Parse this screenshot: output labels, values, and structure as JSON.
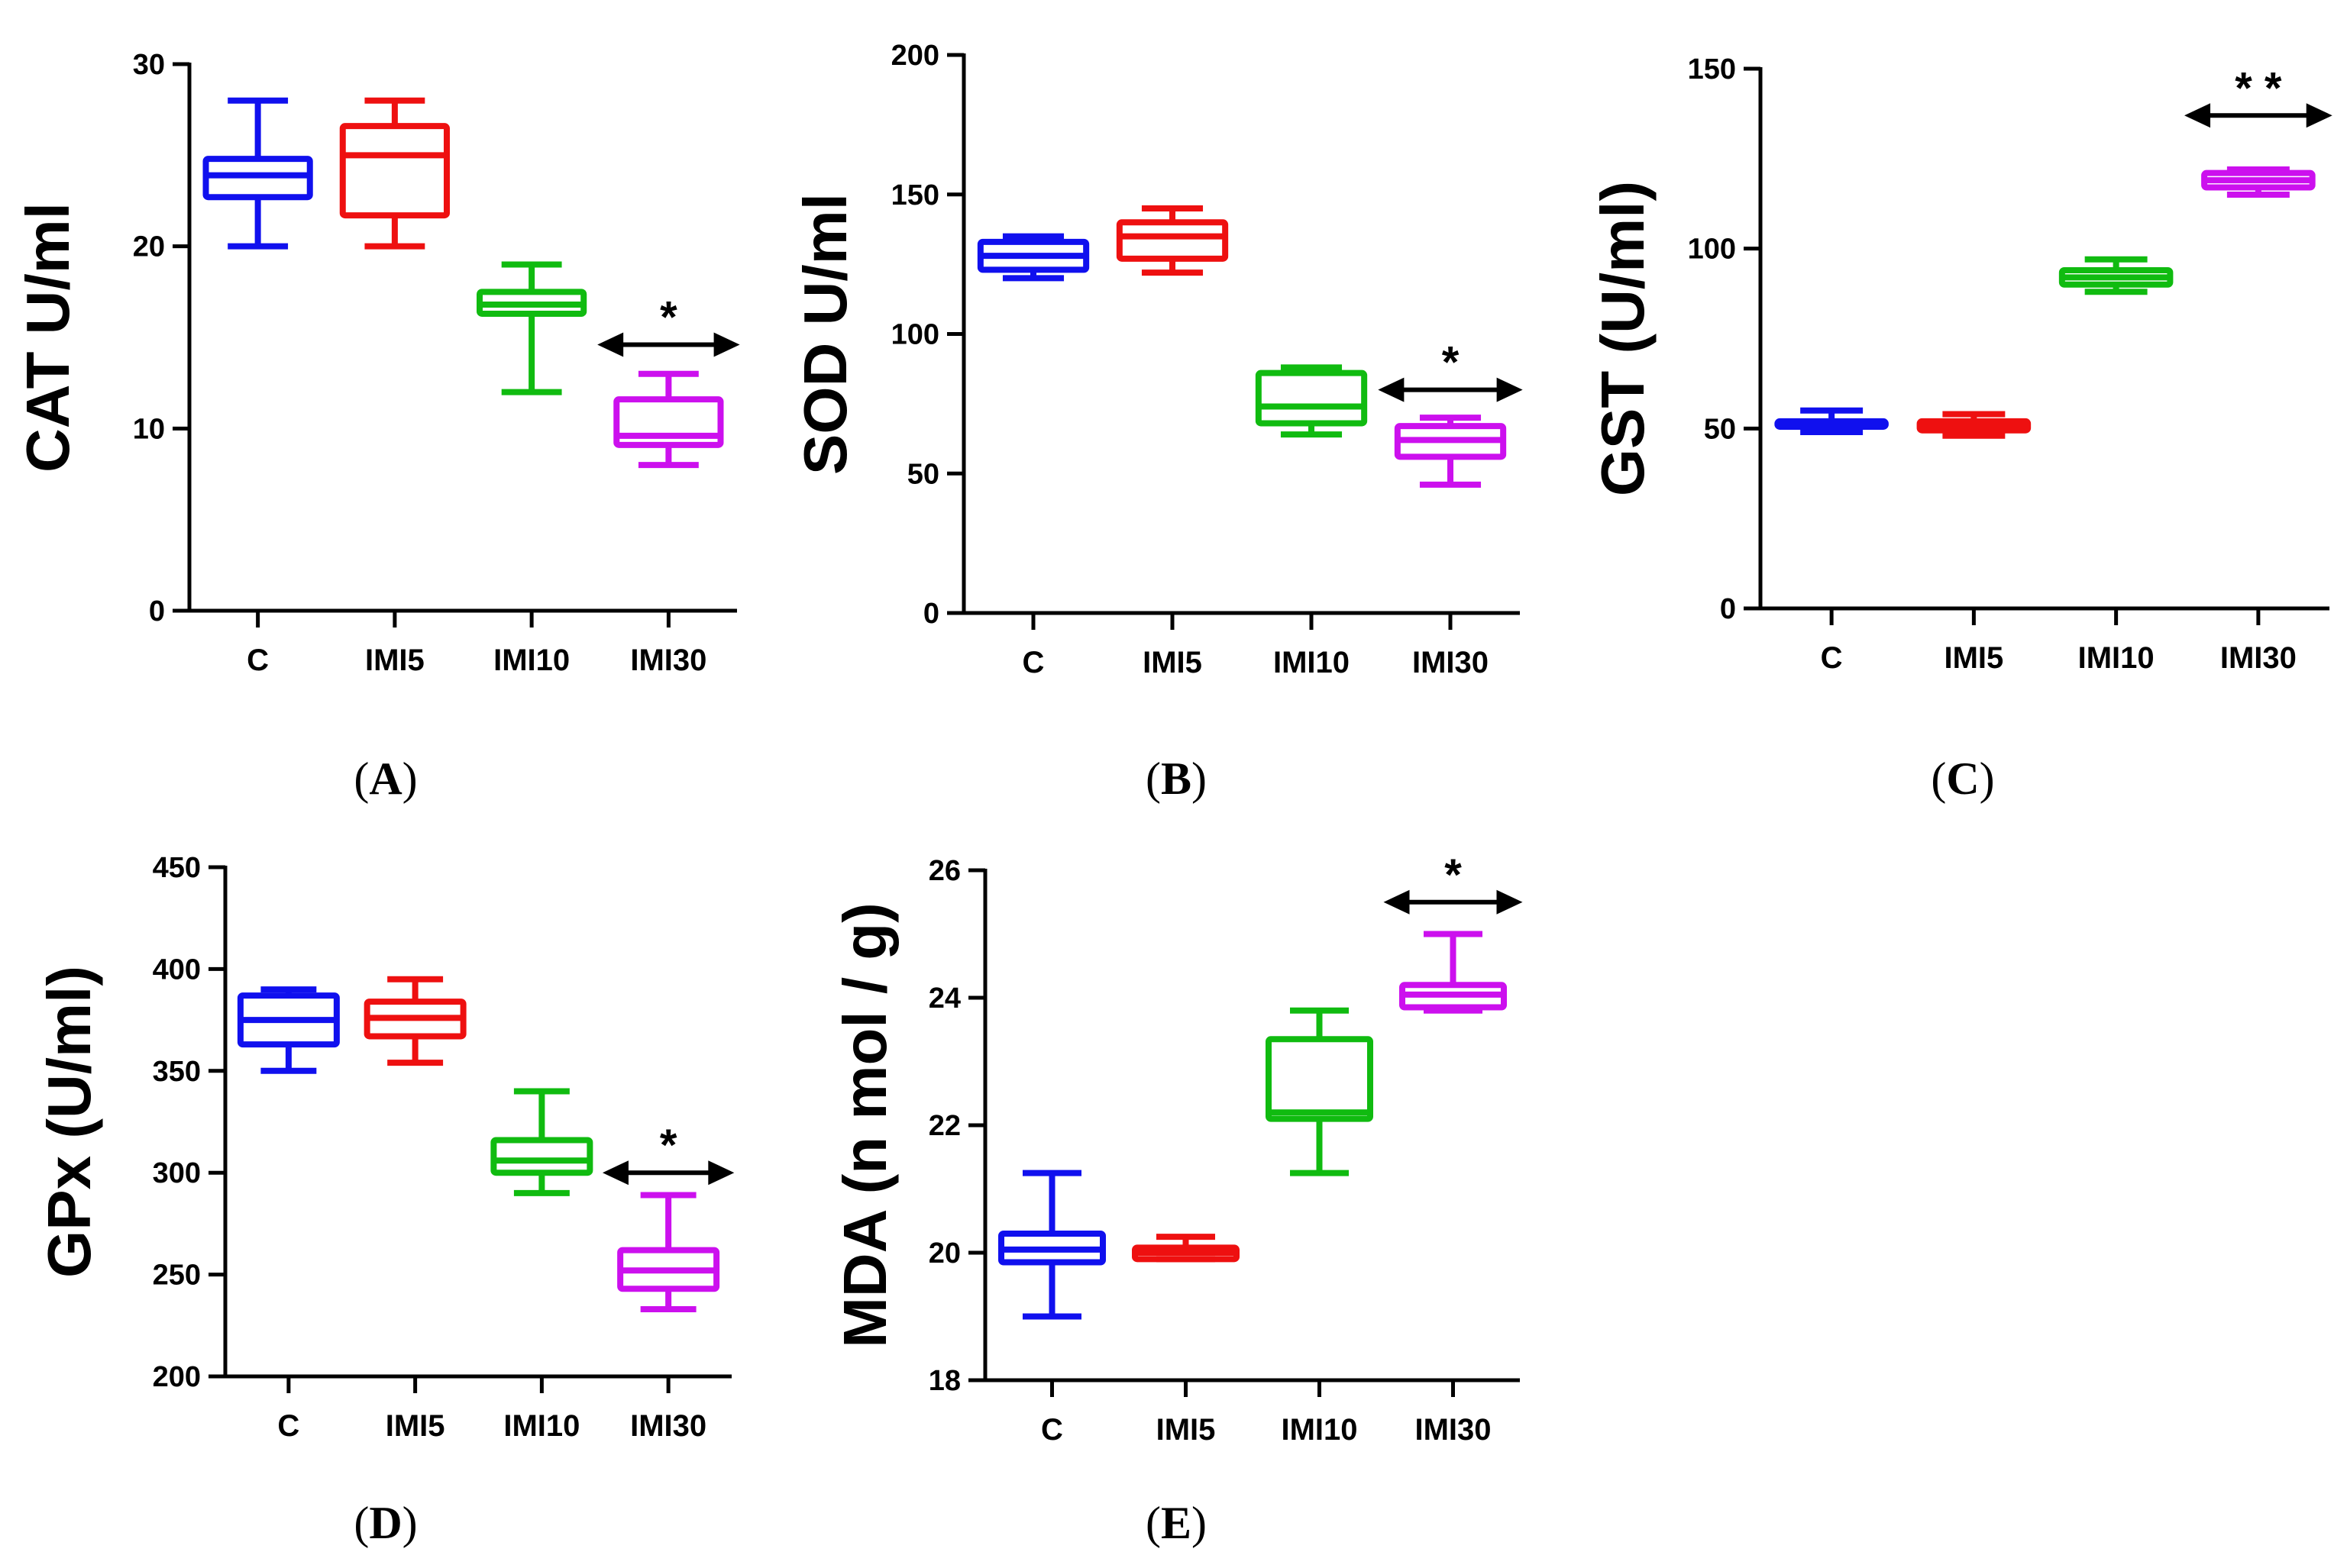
{
  "chart_data": [
    {
      "panel": "A",
      "type": "box",
      "ylabel": "CAT U/ml",
      "ylim": [
        0,
        30
      ],
      "yticks": [
        0,
        10,
        20,
        30
      ],
      "categories": [
        "C",
        "IMI5",
        "IMI10",
        "IMI30"
      ],
      "colors": [
        "#1010ee",
        "#ee1010",
        "#10bb10",
        "#cc10ee"
      ],
      "boxes": [
        {
          "min": 20,
          "q1": 22.7,
          "median": 23.9,
          "q3": 24.8,
          "max": 28
        },
        {
          "min": 20,
          "q1": 21.7,
          "median": 25,
          "q3": 26.6,
          "max": 28
        },
        {
          "min": 12,
          "q1": 16.3,
          "median": 16.8,
          "q3": 17.5,
          "max": 19
        },
        {
          "min": 8,
          "q1": 9.1,
          "median": 9.6,
          "q3": 11.6,
          "max": 13
        }
      ],
      "annotations": [
        {
          "text": "*",
          "category": "IMI30",
          "value": 14.6
        }
      ]
    },
    {
      "panel": "B",
      "type": "box",
      "ylabel": "SOD U/ml",
      "ylim": [
        0,
        200
      ],
      "yticks": [
        0,
        50,
        100,
        150,
        200
      ],
      "categories": [
        "C",
        "IMI5",
        "IMI10",
        "IMI30"
      ],
      "colors": [
        "#1010ee",
        "#ee1010",
        "#10bb10",
        "#cc10ee"
      ],
      "boxes": [
        {
          "min": 120,
          "q1": 123,
          "median": 128,
          "q3": 133,
          "max": 135
        },
        {
          "min": 122,
          "q1": 127,
          "median": 135,
          "q3": 140,
          "max": 145
        },
        {
          "min": 64,
          "q1": 68,
          "median": 74,
          "q3": 86,
          "max": 88
        },
        {
          "min": 46,
          "q1": 56,
          "median": 62,
          "q3": 67,
          "max": 70
        }
      ],
      "annotations": [
        {
          "text": "*",
          "category": "IMI30",
          "value": 80
        }
      ]
    },
    {
      "panel": "C",
      "type": "box",
      "ylabel": "GST (U/ml)",
      "ylim": [
        0,
        150
      ],
      "yticks": [
        0,
        50,
        100,
        150
      ],
      "categories": [
        "C",
        "IMI5",
        "IMI10",
        "IMI30"
      ],
      "colors": [
        "#1010ee",
        "#ee1010",
        "#10bb10",
        "#cc10ee"
      ],
      "boxes": [
        {
          "min": 49,
          "q1": 50.5,
          "median": 51,
          "q3": 52,
          "max": 55
        },
        {
          "min": 48,
          "q1": 49.5,
          "median": 50.5,
          "q3": 52,
          "max": 54
        },
        {
          "min": 88,
          "q1": 90,
          "median": 92,
          "q3": 94,
          "max": 97
        },
        {
          "min": 115,
          "q1": 117,
          "median": 119,
          "q3": 121,
          "max": 122
        }
      ],
      "annotations": [
        {
          "text": "* *",
          "category": "IMI30",
          "value": 137
        }
      ]
    },
    {
      "panel": "D",
      "type": "box",
      "ylabel": "GPx (U/ml)",
      "ylim": [
        200,
        450
      ],
      "yticks": [
        200,
        250,
        300,
        350,
        400,
        450
      ],
      "categories": [
        "C",
        "IMI5",
        "IMI10",
        "IMI30"
      ],
      "colors": [
        "#1010ee",
        "#ee1010",
        "#10bb10",
        "#cc10ee"
      ],
      "boxes": [
        {
          "min": 350,
          "q1": 363,
          "median": 375,
          "q3": 387,
          "max": 390
        },
        {
          "min": 354,
          "q1": 367,
          "median": 376,
          "q3": 384,
          "max": 395
        },
        {
          "min": 290,
          "q1": 300,
          "median": 306,
          "q3": 316,
          "max": 340
        },
        {
          "min": 233,
          "q1": 243,
          "median": 252,
          "q3": 262,
          "max": 289
        }
      ],
      "annotations": [
        {
          "text": "*",
          "category": "IMI30",
          "value": 300
        }
      ]
    },
    {
      "panel": "E",
      "type": "box",
      "ylabel": "MDA (n mol / g)",
      "ylim": [
        18,
        26
      ],
      "yticks": [
        18,
        20,
        22,
        24,
        26
      ],
      "categories": [
        "C",
        "IMI5",
        "IMI10",
        "IMI30"
      ],
      "colors": [
        "#1010ee",
        "#ee1010",
        "#10bb10",
        "#cc10ee"
      ],
      "boxes": [
        {
          "min": 19,
          "q1": 19.85,
          "median": 20.05,
          "q3": 20.3,
          "max": 21.25
        },
        {
          "min": 19.9,
          "q1": 19.9,
          "median": 20.0,
          "q3": 20.08,
          "max": 20.25
        },
        {
          "min": 21.25,
          "q1": 22.1,
          "median": 22.2,
          "q3": 23.35,
          "max": 23.8
        },
        {
          "min": 23.8,
          "q1": 23.85,
          "median": 24.05,
          "q3": 24.2,
          "max": 25.0
        }
      ],
      "annotations": [
        {
          "text": "*",
          "category": "IMI30",
          "value": 25.5
        }
      ]
    }
  ]
}
